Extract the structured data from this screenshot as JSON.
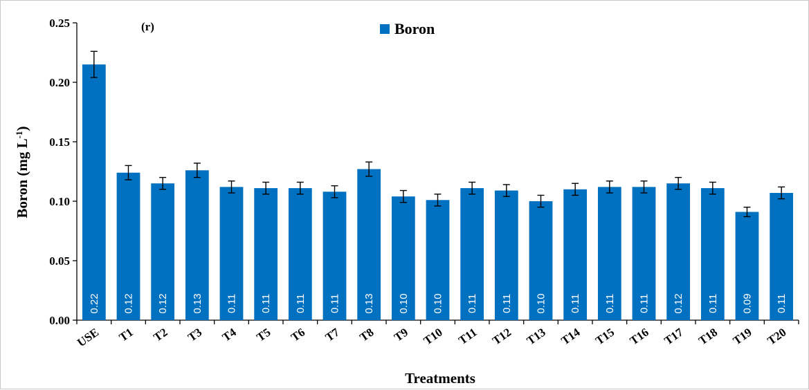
{
  "chart_data": {
    "type": "bar",
    "panel_label": "(r)",
    "xlabel": "Treatments",
    "ylabel_main": "Boron (mg L",
    "ylabel_sup": "-1",
    "ylabel_close": ")",
    "ylim": [
      0,
      0.25
    ],
    "yticks": [
      "0.00",
      "0.05",
      "0.10",
      "0.15",
      "0.20",
      "0.25"
    ],
    "ytick_values": [
      0,
      0.05,
      0.1,
      0.15,
      0.2,
      0.25
    ],
    "grid": false,
    "legend_position": "top-center",
    "categories": [
      "USE",
      "T1",
      "T2",
      "T3",
      "T4",
      "T5",
      "T6",
      "T7",
      "T8",
      "T9",
      "T10",
      "T11",
      "T12",
      "T13",
      "T14",
      "T15",
      "T16",
      "T17",
      "T18",
      "T19",
      "T20"
    ],
    "series": [
      {
        "name": "Boron",
        "color": "#0070c0",
        "values": [
          0.215,
          0.124,
          0.115,
          0.126,
          0.112,
          0.111,
          0.111,
          0.108,
          0.127,
          0.104,
          0.101,
          0.111,
          0.109,
          0.1,
          0.11,
          0.112,
          0.112,
          0.115,
          0.111,
          0.091,
          0.107
        ],
        "errors": [
          0.011,
          0.006,
          0.005,
          0.006,
          0.005,
          0.005,
          0.005,
          0.005,
          0.006,
          0.005,
          0.005,
          0.005,
          0.005,
          0.005,
          0.005,
          0.005,
          0.005,
          0.005,
          0.005,
          0.004,
          0.005
        ],
        "data_labels": [
          "0.22",
          "0.12",
          "0.12",
          "0.13",
          "0.11",
          "0.11",
          "0.11",
          "0.11",
          "0.13",
          "0.10",
          "0.10",
          "0.11",
          "0.11",
          "0.10",
          "0.11",
          "0.11",
          "0.11",
          "0.12",
          "0.11",
          "0.09",
          "0.11"
        ]
      }
    ]
  }
}
